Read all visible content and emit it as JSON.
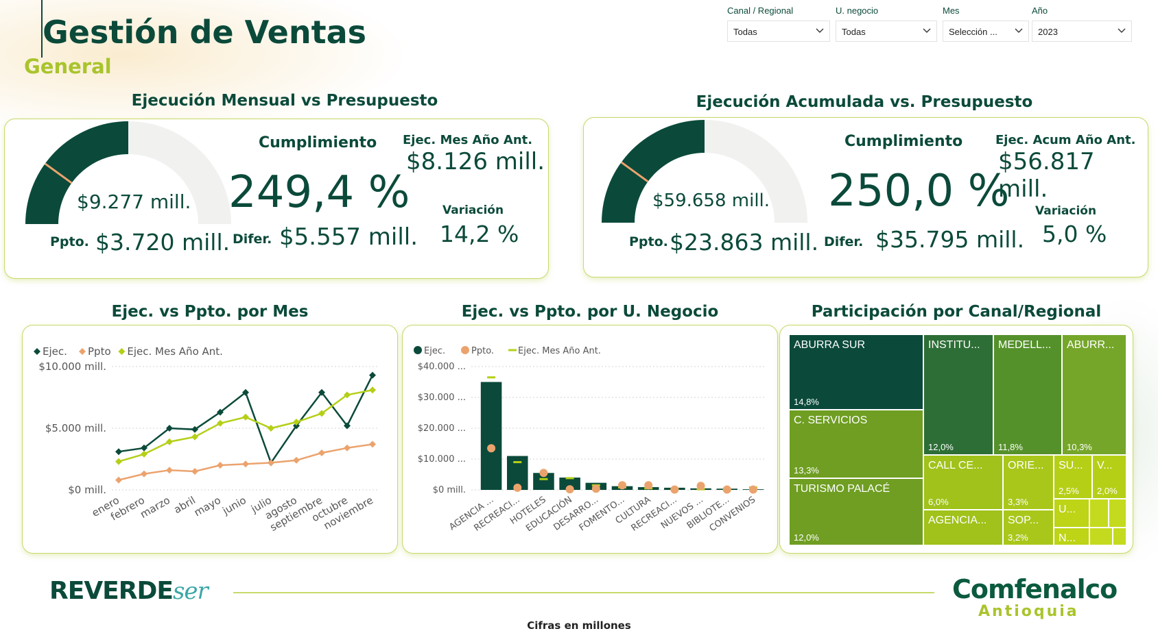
{
  "header": {
    "title": "Gestión de Ventas",
    "subtitle": "General"
  },
  "filters": [
    {
      "label": "Canal / Regional",
      "value": "Todas"
    },
    {
      "label": "U. negocio",
      "value": "Todas"
    },
    {
      "label": "Mes",
      "value": "Selección ..."
    },
    {
      "label": "Año",
      "value": "2023"
    }
  ],
  "kpi_monthly": {
    "section_title": "Ejecución Mensual vs Presupuesto",
    "gauge_value": "$9.277 mill.",
    "gauge_fill_fraction": 0.5,
    "gauge_target_fraction": 0.2,
    "ppto_label": "Ppto.",
    "ppto_value": "$3.720 mill.",
    "cumplimiento_label": "Cumplimiento",
    "cumplimiento_value": "249,4 %",
    "difer_label": "Difer.",
    "difer_value": "$5.557 mill.",
    "ant_label": "Ejec. Mes Año Ant.",
    "ant_value": "$8.126 mill.",
    "variacion_label": "Variación",
    "variacion_value": "14,2 %"
  },
  "kpi_cumulative": {
    "section_title": "Ejecución Acumulada vs. Presupuesto",
    "gauge_value": "$59.658 mill.",
    "gauge_fill_fraction": 0.5,
    "gauge_target_fraction": 0.2,
    "ppto_label": "Ppto.",
    "ppto_value": "$23.863 mill.",
    "cumplimiento_label": "Cumplimiento",
    "cumplimiento_value": "250,0 %",
    "difer_label": "Difer.",
    "difer_value": "$35.795 mill.",
    "ant_label": "Ejec. Acum Año Ant.",
    "ant_value": "$56.817 mill.",
    "variacion_label": "Variación",
    "variacion_value": "5,0 %"
  },
  "colors": {
    "dark_green": "#0b4a3a",
    "lime": "#b5cf17",
    "orange": "#eba36e",
    "gauge_bg": "#f1f1f0"
  },
  "chart_data": [
    {
      "type": "line",
      "title": "Ejec. vs Ppto. por Mes",
      "categories": [
        "enero",
        "febrero",
        "marzo",
        "abril",
        "mayo",
        "junio",
        "julio",
        "agosto",
        "septiembre",
        "octubre",
        "noviembre"
      ],
      "y_ticks": [
        "$10.000 mill.",
        "$5.000 mill.",
        "$0 mill."
      ],
      "ylim": [
        0,
        10000
      ],
      "series": [
        {
          "name": "Ejec.",
          "color": "#0b4a3a",
          "marker": "diamond",
          "values": [
            3100,
            3400,
            5000,
            4900,
            6300,
            7900,
            2200,
            5200,
            7900,
            5200,
            9300
          ]
        },
        {
          "name": "Ppto",
          "color": "#eba36e",
          "marker": "diamond",
          "values": [
            800,
            1300,
            1600,
            1500,
            2000,
            2100,
            2200,
            2400,
            3000,
            3400,
            3700
          ]
        },
        {
          "name": "Ejec. Mes Año Ant.",
          "color": "#b5cf17",
          "marker": "diamond",
          "values": [
            2300,
            2900,
            3900,
            4300,
            5400,
            5900,
            5000,
            5500,
            6200,
            7700,
            8100
          ]
        }
      ]
    },
    {
      "type": "bar",
      "title": "Ejec. vs Ppto. por U. Negocio",
      "categories": [
        "AGENCIA ...",
        "RECREACI...",
        "HOTELES",
        "EDUCACIÓN",
        "DESARRO...",
        "FOMENTO...",
        "CULTURA",
        "RECREACI...",
        "NUEVOS ...",
        "BIBLIOTE...",
        "CONVENIOS"
      ],
      "y_ticks": [
        "$40.000 ...",
        "$30.000 ...",
        "$20.000 ...",
        "$10.000 ...",
        "$0 mill."
      ],
      "ylim": [
        0,
        40000
      ],
      "series": [
        {
          "name": "Ejec.",
          "color": "#0b4a3a",
          "values": [
            35000,
            11000,
            5500,
            4000,
            2300,
            1200,
            900,
            700,
            500,
            400,
            200
          ]
        },
        {
          "name": "Ppto.",
          "color": "#eba36e",
          "values": [
            13500,
            700,
            5500,
            200,
            400,
            1500,
            1500,
            100,
            1300,
            100,
            100
          ]
        },
        {
          "name": "Ejec. Mes Año Ant.",
          "color": "#b5cf17",
          "values": [
            36500,
            9000,
            3500,
            3800,
            1500,
            800,
            500,
            300,
            200,
            100,
            800
          ]
        }
      ]
    },
    {
      "type": "treemap",
      "title": "Participación por Canal/Regional",
      "items": [
        {
          "name": "ABURRA SUR",
          "value": "14,8%"
        },
        {
          "name": "C. SERVICIOS",
          "value": "13,3%"
        },
        {
          "name": "TURISMO PALACÉ",
          "value": "12,0%"
        },
        {
          "name": "INSTITU...",
          "value": "12,0%"
        },
        {
          "name": "MEDELL...",
          "value": "11,8%"
        },
        {
          "name": "ABURR...",
          "value": "10,3%"
        },
        {
          "name": "CALL CE...",
          "value": "6,0%"
        },
        {
          "name": "AGENCIA...",
          "value": ""
        },
        {
          "name": "ORIE...",
          "value": "3,3%"
        },
        {
          "name": "SOP...",
          "value": "3,2%"
        },
        {
          "name": "SU...",
          "value": "2,5%"
        },
        {
          "name": "V...",
          "value": "2,0%"
        },
        {
          "name": "U...",
          "value": ""
        },
        {
          "name": "N...",
          "value": ""
        }
      ]
    }
  ],
  "footer": {
    "brand_left": "REVERDE",
    "brand_left_script": "ser",
    "brand_right": "Comfenalco",
    "brand_right_sub": "Antioquia",
    "note": "Cifras en millones"
  }
}
